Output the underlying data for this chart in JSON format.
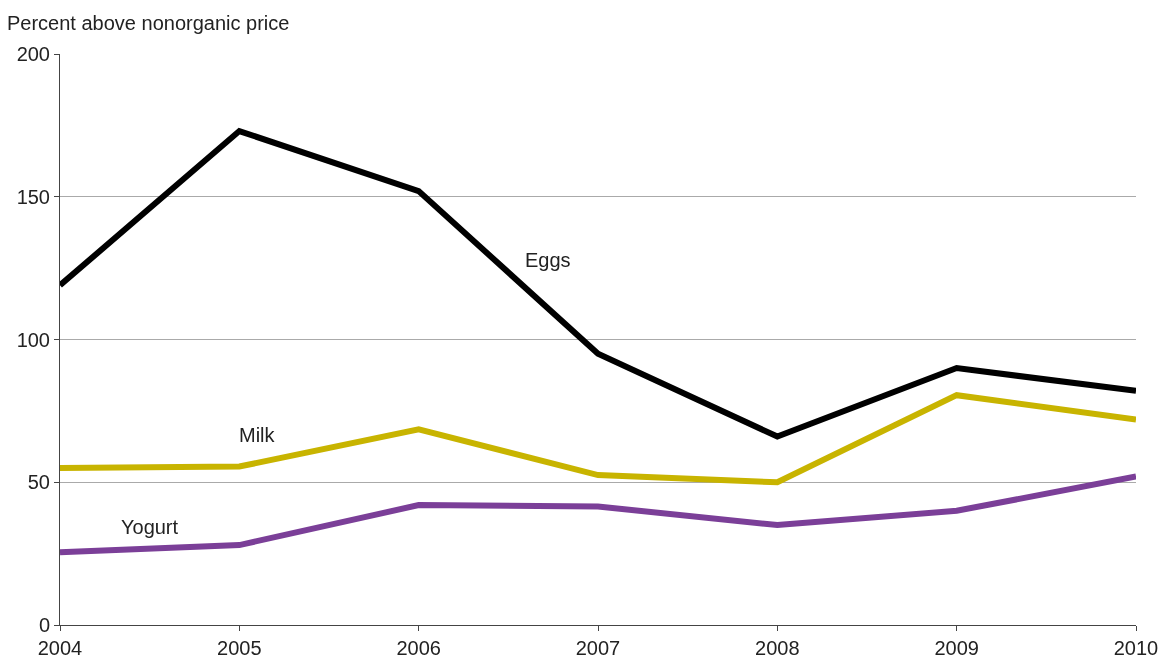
{
  "chart_data": {
    "type": "line",
    "ylabel": "Percent above nonorganic price",
    "x": [
      2004,
      2005,
      2006,
      2007,
      2008,
      2009,
      2010
    ],
    "series": [
      {
        "name": "Eggs",
        "color": "#000000",
        "values": [
          119,
          173,
          152,
          95,
          66,
          90,
          82
        ]
      },
      {
        "name": "Milk",
        "color": "#c8b400",
        "values": [
          55,
          55.5,
          68.5,
          52.5,
          50,
          80.5,
          72
        ]
      },
      {
        "name": "Yogurt",
        "color": "#7b3f98",
        "values": [
          25.5,
          28,
          42,
          41.5,
          35,
          40,
          52
        ]
      }
    ],
    "xlim": [
      2004,
      2010
    ],
    "xticks": [
      2004,
      2005,
      2006,
      2007,
      2008,
      2009,
      2010
    ],
    "ylim": [
      0,
      200
    ],
    "yticks": [
      0,
      50,
      100,
      150,
      200
    ],
    "grid": "y",
    "legend": false,
    "marker": "none",
    "line_style": "solid"
  }
}
